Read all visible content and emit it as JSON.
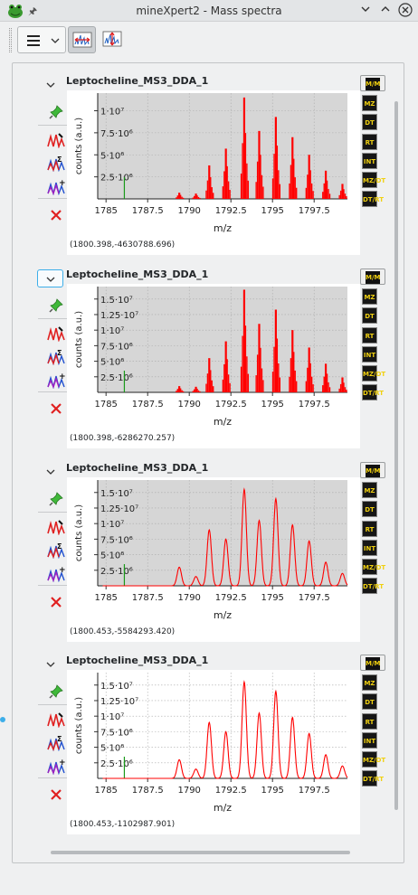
{
  "window": {
    "title": "mineXpert2 - Mass spectra",
    "icons": {
      "app": "frog-app-icon",
      "pin": "pin-icon",
      "minimize": "chevron-down-icon",
      "maximize": "chevron-up-icon",
      "close": "close-x-icon"
    }
  },
  "toolbar": {
    "menu": "hamburger-menu-icon",
    "tools": [
      "spectrum-zoom-icon",
      "spectrum-range-icon"
    ]
  },
  "right_buttons": [
    "M/M",
    "MZ",
    "DT",
    "RT",
    "INT",
    "MZ/DT",
    "DT/RT"
  ],
  "panels": [
    {
      "title": "Leptocheline_MS3_DDA_1",
      "coords": "(1800.398,-4630788.696)",
      "chart_data": {
        "type": "line",
        "style": "sticks",
        "xlabel": "m/z",
        "ylabel": "counts (a.u.)",
        "xlim": [
          1784.5,
          1799.5
        ],
        "ylim": [
          0,
          12000000
        ],
        "xticks": [
          "1785",
          "1787.5",
          "1790",
          "1792.5",
          "1795",
          "1797.5"
        ],
        "yticks": [
          "2.5·10⁶",
          "5·10⁶",
          "7.5·10⁶",
          "1·10⁷"
        ],
        "background": "#d6d6d6",
        "grid": true,
        "series_color": "#ff0000",
        "marker_x": 1786.1,
        "peaks": [
          {
            "x": 1789.4,
            "y": 700000
          },
          {
            "x": 1790.4,
            "y": 600000
          },
          {
            "x": 1791.2,
            "y": 3800000
          },
          {
            "x": 1792.2,
            "y": 5700000
          },
          {
            "x": 1793.3,
            "y": 11500000
          },
          {
            "x": 1794.2,
            "y": 7700000
          },
          {
            "x": 1795.2,
            "y": 9300000
          },
          {
            "x": 1796.2,
            "y": 7000000
          },
          {
            "x": 1797.2,
            "y": 5000000
          },
          {
            "x": 1798.2,
            "y": 3200000
          },
          {
            "x": 1799.2,
            "y": 1700000
          }
        ]
      }
    },
    {
      "title": "Leptocheline_MS3_DDA_1",
      "coords": "(1800.398,-6286270.257)",
      "chart_data": {
        "type": "line",
        "style": "sticks",
        "xlabel": "m/z",
        "ylabel": "counts (a.u.)",
        "xlim": [
          1784.5,
          1799.5
        ],
        "ylim": [
          0,
          17000000
        ],
        "xticks": [
          "1785",
          "1787.5",
          "1790",
          "1792.5",
          "1795",
          "1797.5"
        ],
        "yticks": [
          "2.5·10⁶",
          "5·10⁶",
          "7.5·10⁶",
          "1·10⁷",
          "1.25·10⁷",
          "1.5·10⁷"
        ],
        "background": "#d6d6d6",
        "grid": true,
        "series_color": "#ff0000",
        "marker_x": 1786.1,
        "peaks": [
          {
            "x": 1789.4,
            "y": 1000000
          },
          {
            "x": 1790.4,
            "y": 900000
          },
          {
            "x": 1791.2,
            "y": 5500000
          },
          {
            "x": 1792.2,
            "y": 8200000
          },
          {
            "x": 1793.3,
            "y": 16500000
          },
          {
            "x": 1794.2,
            "y": 11000000
          },
          {
            "x": 1795.2,
            "y": 13300000
          },
          {
            "x": 1796.2,
            "y": 10000000
          },
          {
            "x": 1797.2,
            "y": 7200000
          },
          {
            "x": 1798.2,
            "y": 4600000
          },
          {
            "x": 1799.2,
            "y": 2400000
          }
        ]
      }
    },
    {
      "title": "Leptocheline_MS3_DDA_1",
      "coords": "(1800.453,-5584293.420)",
      "chart_data": {
        "type": "line",
        "style": "profile",
        "xlabel": "m/z",
        "ylabel": "counts (a.u.)",
        "xlim": [
          1784.5,
          1799.5
        ],
        "ylim": [
          0,
          17000000
        ],
        "xticks": [
          "1785",
          "1787.5",
          "1790",
          "1792.5",
          "1795",
          "1797.5"
        ],
        "yticks": [
          "2.5·10⁶",
          "5·10⁶",
          "7.5·10⁶",
          "1·10⁷",
          "1.25·10⁷",
          "1.5·10⁷"
        ],
        "background": "#d6d6d6",
        "grid": true,
        "series_color": "#ff0000",
        "marker_x": 1786.1,
        "peaks": [
          {
            "x": 1789.4,
            "y": 3000000
          },
          {
            "x": 1790.4,
            "y": 1500000
          },
          {
            "x": 1791.2,
            "y": 9000000
          },
          {
            "x": 1792.2,
            "y": 7500000
          },
          {
            "x": 1793.3,
            "y": 15500000
          },
          {
            "x": 1794.2,
            "y": 10500000
          },
          {
            "x": 1795.2,
            "y": 14000000
          },
          {
            "x": 1796.2,
            "y": 9800000
          },
          {
            "x": 1797.2,
            "y": 7200000
          },
          {
            "x": 1798.2,
            "y": 3800000
          },
          {
            "x": 1799.2,
            "y": 2000000
          }
        ]
      }
    },
    {
      "title": "Leptocheline_MS3_DDA_1",
      "coords": "(1800.453,-1102987.901)",
      "chart_data": {
        "type": "line",
        "style": "profile",
        "xlabel": "m/z",
        "ylabel": "counts (a.u.)",
        "xlim": [
          1784.5,
          1799.5
        ],
        "ylim": [
          0,
          17000000
        ],
        "xticks": [
          "1785",
          "1787.5",
          "1790",
          "1792.5",
          "1795",
          "1797.5"
        ],
        "yticks": [
          "2.5·10⁶",
          "5·10⁶",
          "7.5·10⁶",
          "1·10⁷",
          "1.25·10⁷",
          "1.5·10⁷"
        ],
        "background": "#ffffff",
        "grid": true,
        "series_color": "#ff0000",
        "marker_x": 1786.1,
        "peaks": [
          {
            "x": 1789.4,
            "y": 3000000
          },
          {
            "x": 1790.4,
            "y": 1500000
          },
          {
            "x": 1791.2,
            "y": 9000000
          },
          {
            "x": 1792.2,
            "y": 7500000
          },
          {
            "x": 1793.3,
            "y": 15500000
          },
          {
            "x": 1794.2,
            "y": 10500000
          },
          {
            "x": 1795.2,
            "y": 14000000
          },
          {
            "x": 1796.2,
            "y": 9800000
          },
          {
            "x": 1797.2,
            "y": 7200000
          },
          {
            "x": 1798.2,
            "y": 3800000
          },
          {
            "x": 1799.2,
            "y": 2000000
          }
        ]
      }
    }
  ]
}
